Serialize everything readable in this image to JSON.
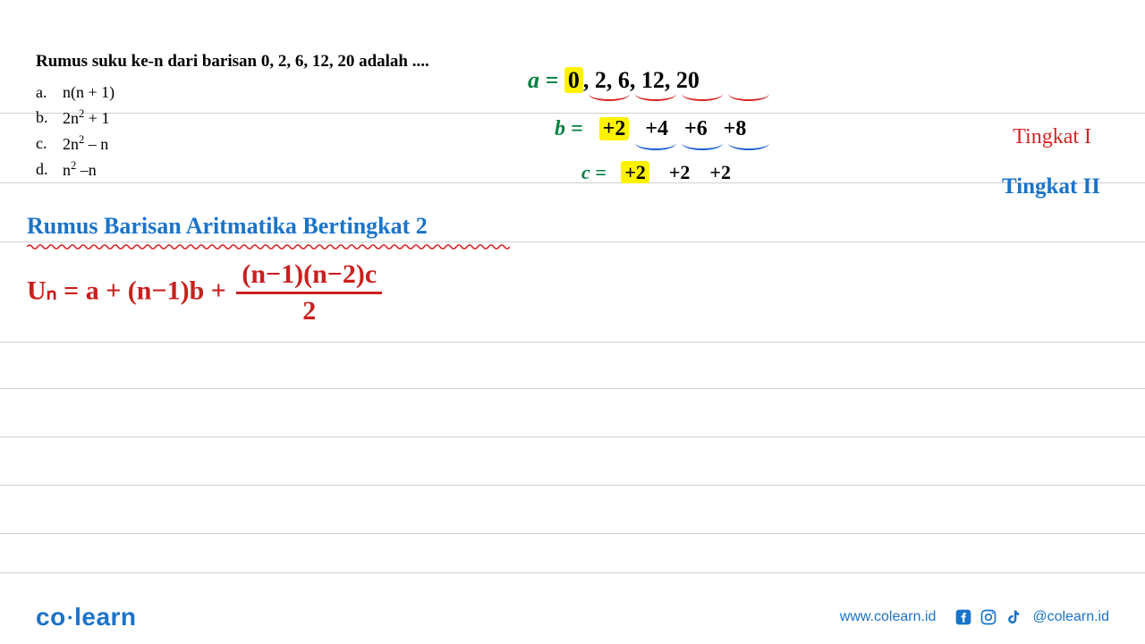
{
  "question": {
    "text": "Rumus suku ke-n dari barisan 0, 2, 6, 12, 20 adalah ....",
    "options": [
      {
        "label": "a.",
        "text_html": "n(n + 1)"
      },
      {
        "label": "b.",
        "text_html": "2n<span class=\"sup\">2</span> + 1"
      },
      {
        "label": "c.",
        "text_html": "2n<span class=\"sup\">2</span> – n"
      },
      {
        "label": "d.",
        "text_html": "n<span class=\"sup\">2</span> –n"
      }
    ],
    "fontsize": 19,
    "color": "#000000"
  },
  "work": {
    "a_label": "a =",
    "a_seq_first": "0",
    "a_seq_rest": ", 2, 6, 12, 20",
    "b_label": "b =",
    "b_vals": [
      "+2",
      "+4",
      "+6",
      "+8"
    ],
    "c_label": "c =",
    "c_vals": [
      "+2",
      "+2",
      "+2"
    ],
    "highlight_color": "#fef200",
    "label_color": "#008040",
    "text_color": "#000000",
    "arc_red_color": "#d92222",
    "arc_blue_color": "#1a5fd0"
  },
  "tingkat": {
    "t1": "Tingkat I",
    "t2": "Tingkat II",
    "t1_color": "#d92222",
    "t2_color": "#1a73c9",
    "fontsize": 24
  },
  "heading": {
    "text": "Rumus Barisan Aritmatika Bertingkat 2",
    "color": "#1a73c9",
    "fontsize": 26,
    "squiggle_color": "#d92222"
  },
  "formula": {
    "lhs": "Uₙ = a + (n−1)b + ",
    "frac_top": "(n−1)(n−2)c",
    "frac_bot": "2",
    "color": "#c9201e",
    "fontsize": 30
  },
  "lines": {
    "color": "#d0d0d0",
    "positions": [
      126,
      204,
      270,
      382,
      434,
      488,
      542,
      596,
      640
    ]
  },
  "footer": {
    "logo_left": "co",
    "logo_right": "learn",
    "site": "www.colearn.id",
    "handle": "@colearn.id",
    "color": "#1a73c9"
  }
}
